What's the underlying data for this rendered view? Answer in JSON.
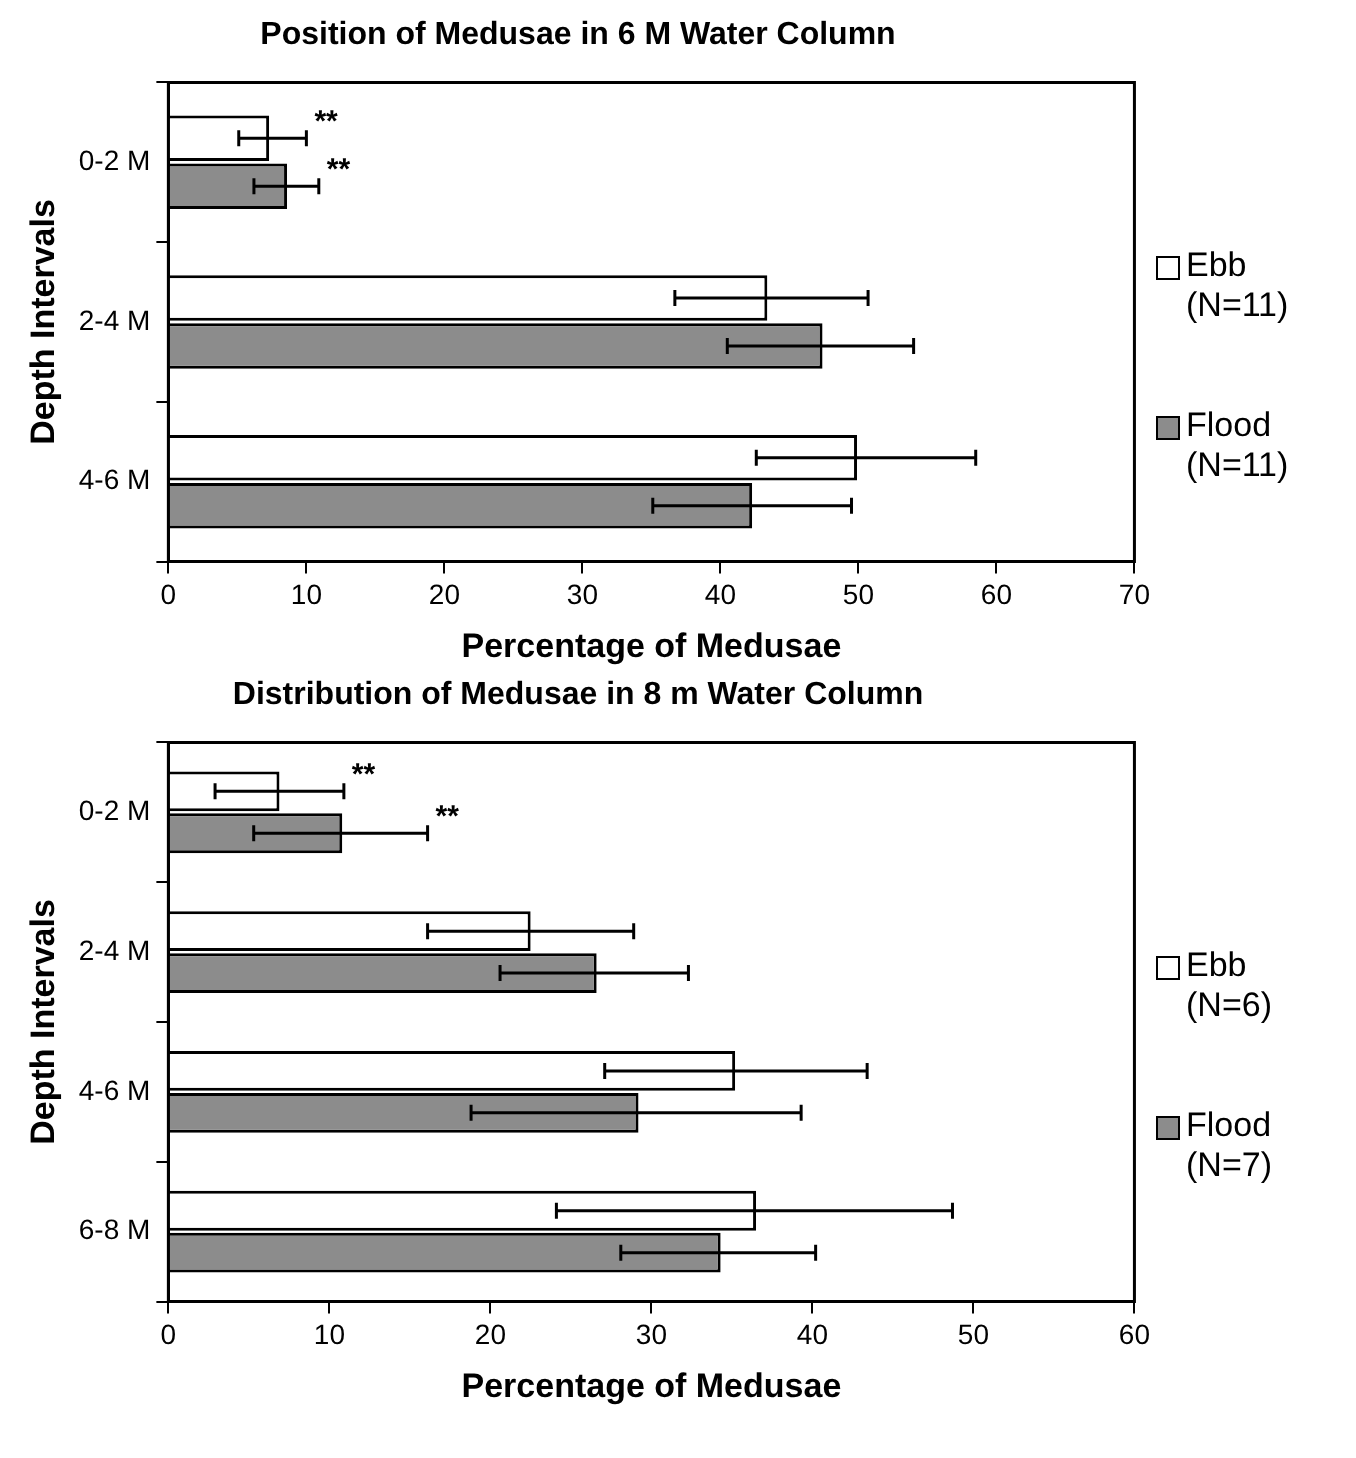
{
  "chart_data": [
    {
      "type": "bar",
      "orientation": "horizontal",
      "title": "Position of Medusae in 6 M Water Column",
      "xlabel": "Percentage of Medusae",
      "ylabel": "Depth Intervals",
      "categories": [
        "0-2 M",
        "2-4 M",
        "4-6 M"
      ],
      "xlim": [
        0,
        70
      ],
      "xticks": [
        0,
        10,
        20,
        30,
        40,
        50,
        60,
        70
      ],
      "grid": false,
      "legend": "right",
      "series": [
        {
          "name": "Ebb (N=11)",
          "color": "#ffffff",
          "values": [
            7.3,
            43.4,
            49.9
          ],
          "errors": [
            [
              5.1,
              10.0
            ],
            [
              36.7,
              50.7
            ],
            [
              42.6,
              58.5
            ]
          ]
        },
        {
          "name": "Flood (N=11)",
          "color": "#8c8c8c",
          "values": [
            8.6,
            47.4,
            42.3
          ],
          "errors": [
            [
              6.2,
              10.9
            ],
            [
              40.5,
              54.0
            ],
            [
              35.1,
              49.5
            ]
          ]
        }
      ],
      "annotations": [
        "**",
        "**"
      ]
    },
    {
      "type": "bar",
      "orientation": "horizontal",
      "title": "Distribution of Medusae in 8 m Water Column",
      "xlabel": "Percentage of Medusae",
      "ylabel": "Depth Intervals",
      "categories": [
        "0-2 M",
        "2-4 M",
        "4-6 M",
        "6-8 M"
      ],
      "xlim": [
        0,
        60
      ],
      "xticks": [
        0,
        10,
        20,
        30,
        40,
        50,
        60
      ],
      "grid": false,
      "legend": "right",
      "series": [
        {
          "name": "Ebb (N=6)",
          "color": "#ffffff",
          "values": [
            6.9,
            22.5,
            35.2,
            36.5
          ],
          "errors": [
            [
              2.9,
              10.9
            ],
            [
              16.1,
              28.9
            ],
            [
              27.1,
              43.4
            ],
            [
              24.1,
              48.7
            ]
          ]
        },
        {
          "name": "Flood (N=7)",
          "color": "#8c8c8c",
          "values": [
            10.8,
            26.6,
            29.2,
            34.3
          ],
          "errors": [
            [
              5.3,
              16.1
            ],
            [
              20.6,
              32.3
            ],
            [
              18.8,
              39.3
            ],
            [
              28.1,
              40.2
            ]
          ]
        }
      ],
      "annotations": [
        "**",
        "**"
      ]
    }
  ]
}
